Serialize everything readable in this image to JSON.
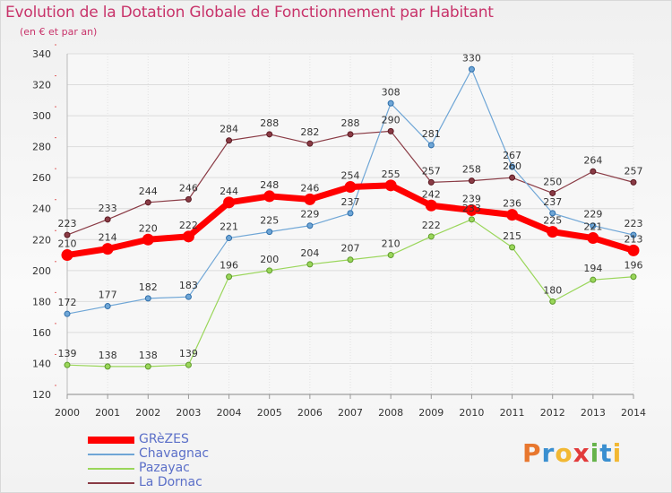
{
  "header": {
    "title": "Evolution de la Dotation Globale de Fonctionnement par Habitant",
    "subtitle": "(en € et par an)"
  },
  "logo": {
    "text": "Proxiti",
    "letter_colors": [
      "#e8772e",
      "#3a8fd0",
      "#f2b833",
      "#e23b3b",
      "#66b34a",
      "#3a8fd0",
      "#f2b833"
    ]
  },
  "chart_data": {
    "type": "line",
    "x": [
      "2000",
      "2001",
      "2002",
      "2003",
      "2004",
      "2005",
      "2006",
      "2007",
      "2008",
      "2009",
      "2010",
      "2011",
      "2012",
      "2013",
      "2014"
    ],
    "ylim": [
      120,
      340
    ],
    "yticks": [
      120,
      140,
      160,
      180,
      200,
      220,
      240,
      260,
      280,
      300,
      320,
      340
    ],
    "grid": true,
    "legend_position": "bottom-left",
    "series": [
      {
        "name": "GRèZES",
        "color": "#ff0000",
        "marker_stroke": "#ff0000",
        "emphasis": true,
        "values": [
          210,
          214,
          220,
          222,
          244,
          248,
          246,
          254,
          255,
          242,
          239,
          236,
          225,
          221,
          213
        ]
      },
      {
        "name": "Chavagnac",
        "color": "#6fa6d6",
        "marker_stroke": "#2e6eaa",
        "emphasis": false,
        "values": [
          172,
          177,
          182,
          183,
          221,
          225,
          229,
          237,
          308,
          281,
          330,
          267,
          237,
          229,
          223
        ]
      },
      {
        "name": "Pazayac",
        "color": "#9ad65a",
        "marker_stroke": "#5d9a2a",
        "emphasis": false,
        "values": [
          139,
          138,
          138,
          139,
          196,
          200,
          204,
          207,
          210,
          222,
          233,
          215,
          180,
          194,
          196
        ]
      },
      {
        "name": "La Dornac",
        "color": "#8a3b45",
        "marker_stroke": "#5a1a22",
        "emphasis": false,
        "values": [
          223,
          233,
          244,
          246,
          284,
          288,
          282,
          288,
          290,
          257,
          258,
          260,
          250,
          264,
          257
        ]
      }
    ]
  }
}
